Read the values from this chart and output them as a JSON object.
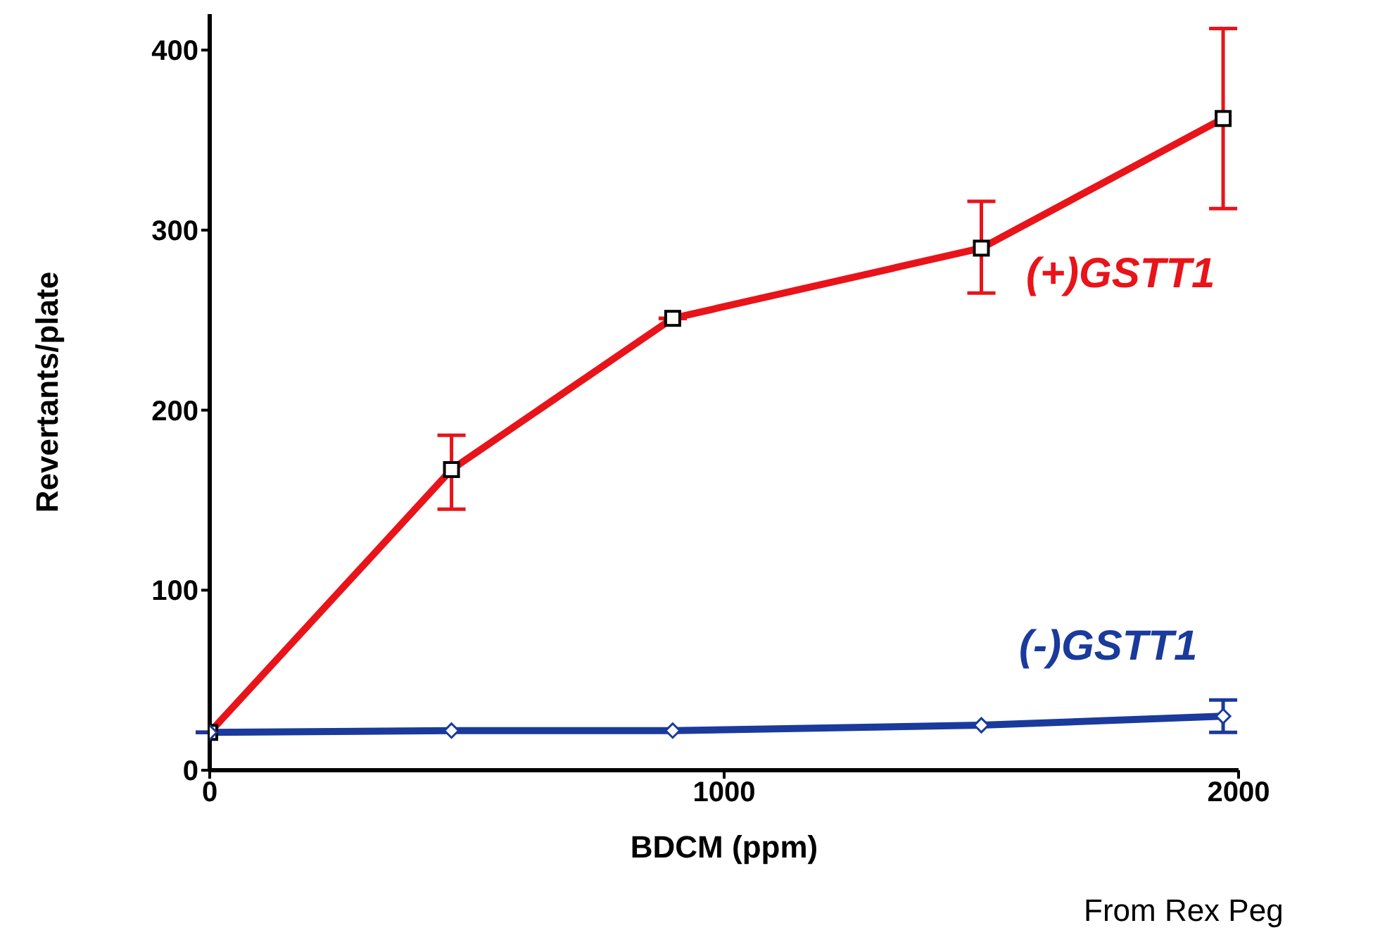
{
  "chart_data": {
    "type": "line",
    "xlabel": "BDCM (ppm)",
    "ylabel": "Revertants/plate",
    "xlim": [
      0,
      2000
    ],
    "xticks": [
      0,
      1000,
      2000
    ],
    "ylim": [
      0,
      420
    ],
    "yticks": [
      0,
      100,
      200,
      300,
      400
    ],
    "line_style": "solid",
    "x": [
      0,
      470,
      900,
      1500,
      1970
    ],
    "series": [
      {
        "name": "(+)GSTT1",
        "color": "#e8141a",
        "marker": "square",
        "values": [
          21,
          167,
          251,
          290,
          362
        ],
        "errors": [
          null,
          [
            145,
            186
          ],
          null,
          [
            265,
            316
          ],
          [
            312,
            412
          ]
        ]
      },
      {
        "name": "(-)GSTT1",
        "color": "#1a3a9c",
        "marker": "diamond",
        "values": [
          21,
          22,
          22,
          25,
          30
        ],
        "errors": [
          null,
          null,
          null,
          null,
          [
            21,
            39
          ]
        ]
      }
    ],
    "annotations": [
      "From Rex Peg"
    ]
  }
}
